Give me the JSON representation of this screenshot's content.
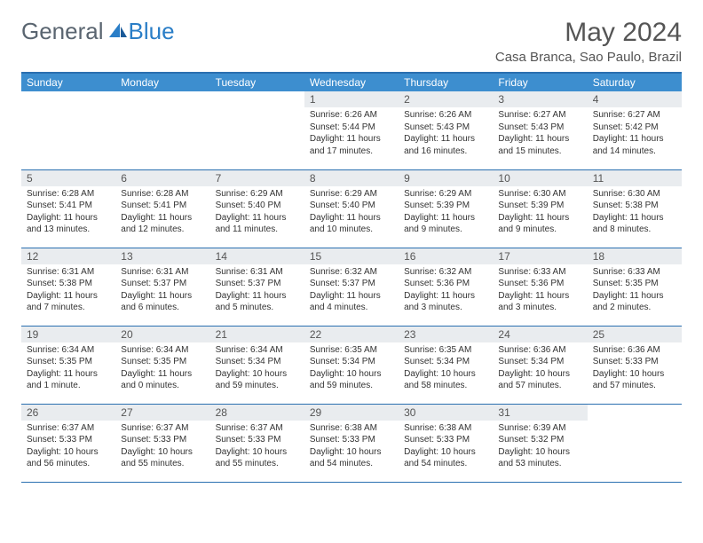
{
  "brand": {
    "left": "General",
    "right": "Blue"
  },
  "title": "May 2024",
  "location": "Casa Branca, Sao Paulo, Brazil",
  "colors": {
    "header_bg": "#3d8ecf",
    "border": "#2a6fb0",
    "daynum_bg": "#e9ecef"
  },
  "weekdays": [
    "Sunday",
    "Monday",
    "Tuesday",
    "Wednesday",
    "Thursday",
    "Friday",
    "Saturday"
  ],
  "weeks": [
    [
      {
        "n": "",
        "sr": "",
        "ss": "",
        "dl": ""
      },
      {
        "n": "",
        "sr": "",
        "ss": "",
        "dl": ""
      },
      {
        "n": "",
        "sr": "",
        "ss": "",
        "dl": ""
      },
      {
        "n": "1",
        "sr": "Sunrise: 6:26 AM",
        "ss": "Sunset: 5:44 PM",
        "dl": "Daylight: 11 hours and 17 minutes."
      },
      {
        "n": "2",
        "sr": "Sunrise: 6:26 AM",
        "ss": "Sunset: 5:43 PM",
        "dl": "Daylight: 11 hours and 16 minutes."
      },
      {
        "n": "3",
        "sr": "Sunrise: 6:27 AM",
        "ss": "Sunset: 5:43 PM",
        "dl": "Daylight: 11 hours and 15 minutes."
      },
      {
        "n": "4",
        "sr": "Sunrise: 6:27 AM",
        "ss": "Sunset: 5:42 PM",
        "dl": "Daylight: 11 hours and 14 minutes."
      }
    ],
    [
      {
        "n": "5",
        "sr": "Sunrise: 6:28 AM",
        "ss": "Sunset: 5:41 PM",
        "dl": "Daylight: 11 hours and 13 minutes."
      },
      {
        "n": "6",
        "sr": "Sunrise: 6:28 AM",
        "ss": "Sunset: 5:41 PM",
        "dl": "Daylight: 11 hours and 12 minutes."
      },
      {
        "n": "7",
        "sr": "Sunrise: 6:29 AM",
        "ss": "Sunset: 5:40 PM",
        "dl": "Daylight: 11 hours and 11 minutes."
      },
      {
        "n": "8",
        "sr": "Sunrise: 6:29 AM",
        "ss": "Sunset: 5:40 PM",
        "dl": "Daylight: 11 hours and 10 minutes."
      },
      {
        "n": "9",
        "sr": "Sunrise: 6:29 AM",
        "ss": "Sunset: 5:39 PM",
        "dl": "Daylight: 11 hours and 9 minutes."
      },
      {
        "n": "10",
        "sr": "Sunrise: 6:30 AM",
        "ss": "Sunset: 5:39 PM",
        "dl": "Daylight: 11 hours and 9 minutes."
      },
      {
        "n": "11",
        "sr": "Sunrise: 6:30 AM",
        "ss": "Sunset: 5:38 PM",
        "dl": "Daylight: 11 hours and 8 minutes."
      }
    ],
    [
      {
        "n": "12",
        "sr": "Sunrise: 6:31 AM",
        "ss": "Sunset: 5:38 PM",
        "dl": "Daylight: 11 hours and 7 minutes."
      },
      {
        "n": "13",
        "sr": "Sunrise: 6:31 AM",
        "ss": "Sunset: 5:37 PM",
        "dl": "Daylight: 11 hours and 6 minutes."
      },
      {
        "n": "14",
        "sr": "Sunrise: 6:31 AM",
        "ss": "Sunset: 5:37 PM",
        "dl": "Daylight: 11 hours and 5 minutes."
      },
      {
        "n": "15",
        "sr": "Sunrise: 6:32 AM",
        "ss": "Sunset: 5:37 PM",
        "dl": "Daylight: 11 hours and 4 minutes."
      },
      {
        "n": "16",
        "sr": "Sunrise: 6:32 AM",
        "ss": "Sunset: 5:36 PM",
        "dl": "Daylight: 11 hours and 3 minutes."
      },
      {
        "n": "17",
        "sr": "Sunrise: 6:33 AM",
        "ss": "Sunset: 5:36 PM",
        "dl": "Daylight: 11 hours and 3 minutes."
      },
      {
        "n": "18",
        "sr": "Sunrise: 6:33 AM",
        "ss": "Sunset: 5:35 PM",
        "dl": "Daylight: 11 hours and 2 minutes."
      }
    ],
    [
      {
        "n": "19",
        "sr": "Sunrise: 6:34 AM",
        "ss": "Sunset: 5:35 PM",
        "dl": "Daylight: 11 hours and 1 minute."
      },
      {
        "n": "20",
        "sr": "Sunrise: 6:34 AM",
        "ss": "Sunset: 5:35 PM",
        "dl": "Daylight: 11 hours and 0 minutes."
      },
      {
        "n": "21",
        "sr": "Sunrise: 6:34 AM",
        "ss": "Sunset: 5:34 PM",
        "dl": "Daylight: 10 hours and 59 minutes."
      },
      {
        "n": "22",
        "sr": "Sunrise: 6:35 AM",
        "ss": "Sunset: 5:34 PM",
        "dl": "Daylight: 10 hours and 59 minutes."
      },
      {
        "n": "23",
        "sr": "Sunrise: 6:35 AM",
        "ss": "Sunset: 5:34 PM",
        "dl": "Daylight: 10 hours and 58 minutes."
      },
      {
        "n": "24",
        "sr": "Sunrise: 6:36 AM",
        "ss": "Sunset: 5:34 PM",
        "dl": "Daylight: 10 hours and 57 minutes."
      },
      {
        "n": "25",
        "sr": "Sunrise: 6:36 AM",
        "ss": "Sunset: 5:33 PM",
        "dl": "Daylight: 10 hours and 57 minutes."
      }
    ],
    [
      {
        "n": "26",
        "sr": "Sunrise: 6:37 AM",
        "ss": "Sunset: 5:33 PM",
        "dl": "Daylight: 10 hours and 56 minutes."
      },
      {
        "n": "27",
        "sr": "Sunrise: 6:37 AM",
        "ss": "Sunset: 5:33 PM",
        "dl": "Daylight: 10 hours and 55 minutes."
      },
      {
        "n": "28",
        "sr": "Sunrise: 6:37 AM",
        "ss": "Sunset: 5:33 PM",
        "dl": "Daylight: 10 hours and 55 minutes."
      },
      {
        "n": "29",
        "sr": "Sunrise: 6:38 AM",
        "ss": "Sunset: 5:33 PM",
        "dl": "Daylight: 10 hours and 54 minutes."
      },
      {
        "n": "30",
        "sr": "Sunrise: 6:38 AM",
        "ss": "Sunset: 5:33 PM",
        "dl": "Daylight: 10 hours and 54 minutes."
      },
      {
        "n": "31",
        "sr": "Sunrise: 6:39 AM",
        "ss": "Sunset: 5:32 PM",
        "dl": "Daylight: 10 hours and 53 minutes."
      },
      {
        "n": "",
        "sr": "",
        "ss": "",
        "dl": ""
      }
    ]
  ]
}
